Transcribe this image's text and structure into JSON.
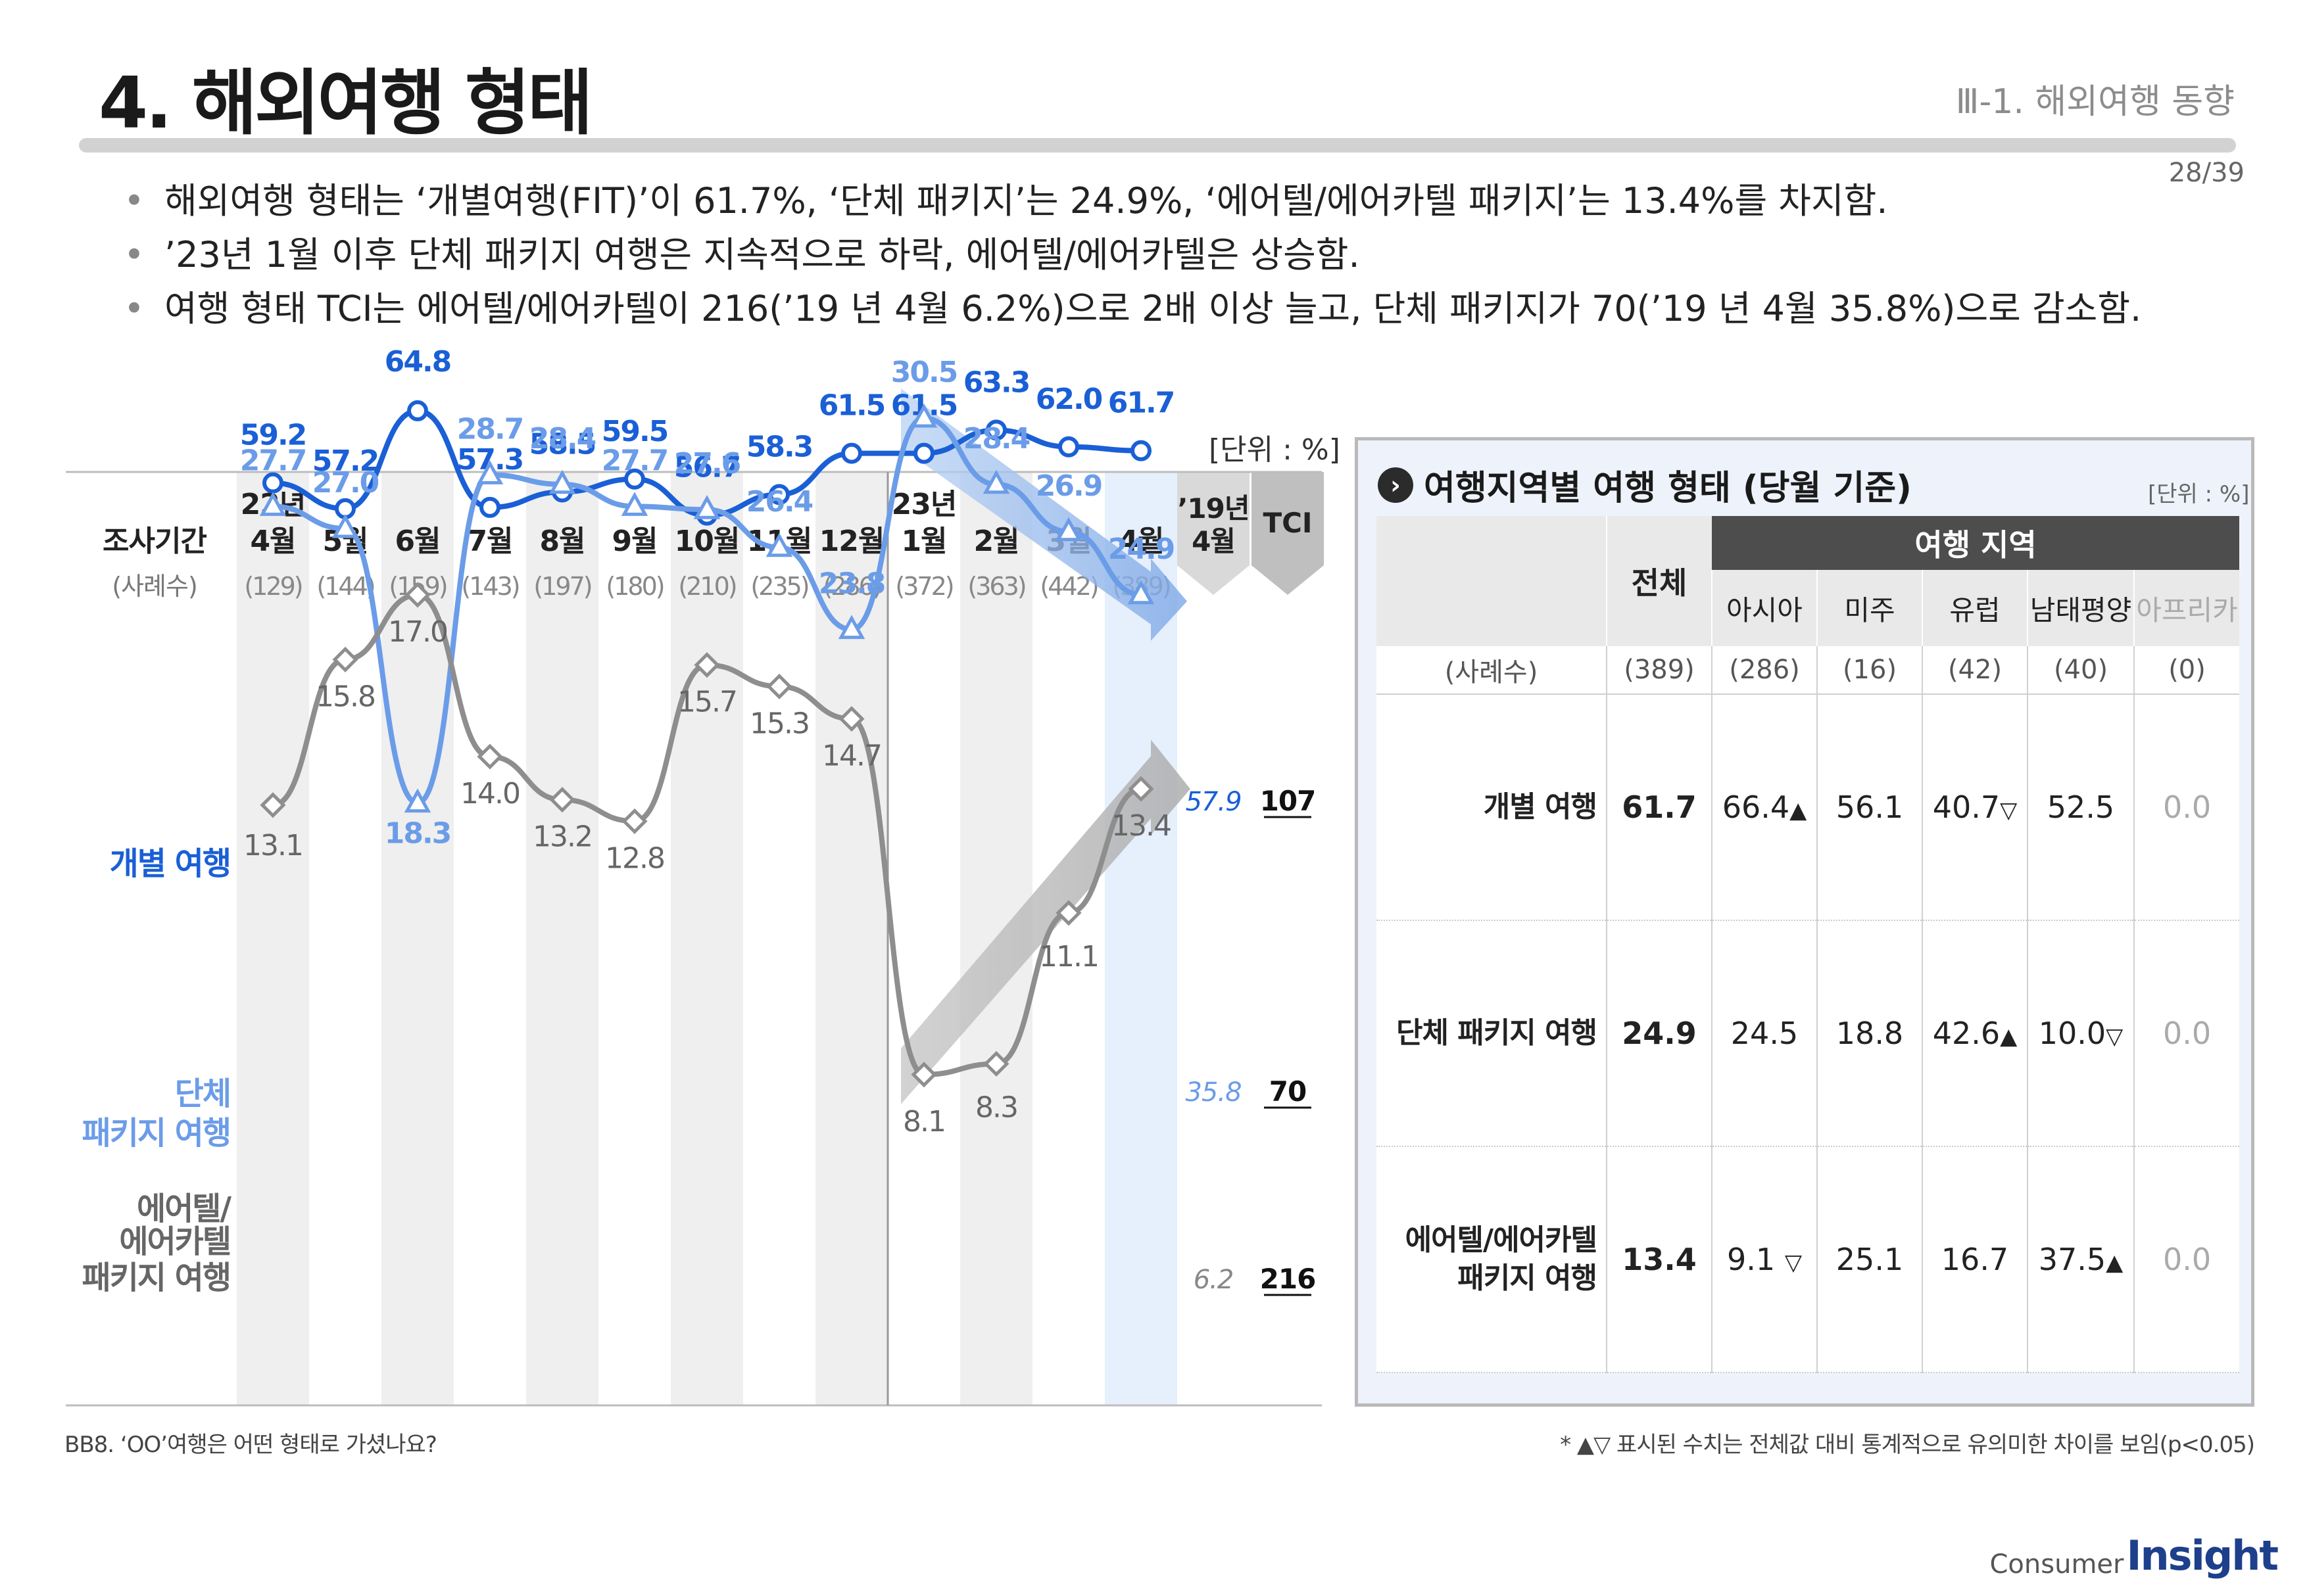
{
  "header": {
    "title": "4. 해외여행 형태",
    "section": "Ⅲ-1. 해외여행 동향",
    "page": "28/39"
  },
  "bullets": [
    "해외여행 형태는 ‘개별여행(FIT)’이 61.7%, ‘단체 패키지’는 24.9%, ‘에어텔/에어카텔 패키지’는 13.4%를 차지함.",
    "’23년 1월 이후 단체 패키지 여행은 지속적으로 하락, 에어텔/에어카텔은 상승함.",
    "여행 형태 TCI는 에어텔/에어카텔이 216(’19 년 4월 6.2%)으로 2배 이상 늘고, 단체 패키지가 70(’19 년 4월 35.8%)으로 감소함."
  ],
  "left_chart": {
    "unit": "[단위 : %]",
    "period_label": "조사기간",
    "sample_label": "(사례수)",
    "year_2022": "22년",
    "year_2023": "23년",
    "ref_year": "’19년",
    "ref_month": "4월",
    "tci_label": "TCI",
    "series_labels": [
      "개별 여행",
      "단체\n패키지 여행",
      "에어텔/\n에어카텔\n패키지 여행"
    ],
    "tci_values": [
      "107",
      "70",
      "216"
    ],
    "ref_values": [
      "57.9",
      "35.8",
      "6.2"
    ]
  },
  "chart_data": {
    "type": "line",
    "categories": [
      "4월",
      "5월",
      "6월",
      "7월",
      "8월",
      "9월",
      "10월",
      "11월",
      "12월",
      "1월",
      "2월",
      "3월",
      "4월"
    ],
    "sample_sizes": [
      "(129)",
      "(144)",
      "(159)",
      "(143)",
      "(197)",
      "(180)",
      "(210)",
      "(235)",
      "(286)",
      "(372)",
      "(363)",
      "(442)",
      "(389)"
    ],
    "series": [
      {
        "name": "개별 여행",
        "color": "#1a5fd6",
        "marker": "circle",
        "values": [
          59.2,
          57.2,
          64.8,
          57.3,
          58.5,
          59.5,
          56.7,
          58.3,
          61.5,
          61.5,
          63.3,
          62.0,
          61.7
        ],
        "ref_2019_april": 57.9,
        "tci": 107
      },
      {
        "name": "단체 패키지 여행",
        "color": "#6b9ce8",
        "marker": "triangle",
        "values": [
          27.7,
          27.0,
          18.3,
          28.7,
          28.4,
          27.7,
          27.6,
          26.4,
          23.8,
          30.5,
          28.4,
          26.9,
          24.9
        ],
        "ref_2019_april": 35.8,
        "tci": 70
      },
      {
        "name": "에어텔/에어카텔 패키지 여행",
        "color": "#8e8e8e",
        "marker": "diamond",
        "values": [
          13.1,
          15.8,
          17.0,
          14.0,
          13.2,
          12.8,
          15.7,
          15.3,
          14.7,
          8.1,
          8.3,
          11.1,
          13.4
        ],
        "ref_2019_april": 6.2,
        "tci": 216
      }
    ]
  },
  "right_table": {
    "title": "여행지역별 여행 형태 (당월 기준)",
    "unit": "[단위 : %]",
    "total_label": "전체",
    "region_group": "여행 지역",
    "regions": [
      "아시아",
      "미주",
      "유럽",
      "남태평양",
      "아프리카"
    ],
    "sample_label": "(사례수)",
    "samples": [
      "(389)",
      "(286)",
      "(16)",
      "(42)",
      "(40)",
      "(0)"
    ],
    "rows": [
      {
        "label": "개별 여행",
        "total": "61.7",
        "cells": [
          "66.4",
          "56.1",
          "40.7",
          "52.5",
          "0.0"
        ],
        "sig": [
          "▲",
          "",
          "▽",
          "",
          ""
        ]
      },
      {
        "label": "단체 패키지 여행",
        "total": "24.9",
        "cells": [
          "24.5",
          "18.8",
          "42.6",
          "10.0",
          "0.0"
        ],
        "sig": [
          "",
          "",
          "▲",
          "▽",
          ""
        ]
      },
      {
        "label": "에어텔/에어카텔\n패키지 여행",
        "total": "13.4",
        "cells": [
          "9.1",
          "25.1",
          "16.7",
          "37.5",
          "0.0"
        ],
        "sig": [
          "▽",
          "",
          "",
          "▲",
          ""
        ]
      }
    ]
  },
  "footnotes": {
    "left": "BB8. ‘OO’여행은 어떤 형태로 가셨나요?",
    "right": "* ▲▽ 표시된 수치는 전체값 대비 통계적으로 유의미한 차이를 보임(p<0.05)"
  },
  "logo": {
    "part1": "Consumer",
    "part2": "Insight"
  }
}
